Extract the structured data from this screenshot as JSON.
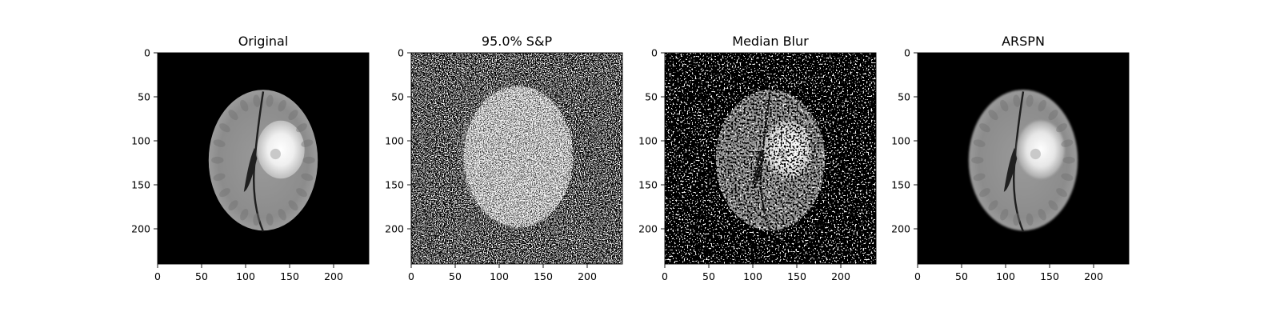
{
  "chart_data": [
    {
      "type": "image",
      "title": "Original",
      "image": {
        "name": "brain-mri-original",
        "content": "axial brain MRI slice on black background with bright lesion in right hemisphere",
        "noise": "none"
      },
      "xlim": [
        0,
        240
      ],
      "ylim": [
        0,
        240
      ],
      "y_inverted": true,
      "xticks": [
        0,
        50,
        100,
        150,
        200
      ],
      "yticks": [
        0,
        50,
        100,
        150,
        200
      ]
    },
    {
      "type": "image",
      "title": "95.0% S&P",
      "image": {
        "name": "brain-mri-salt-pepper",
        "content": "same slice corrupted with salt and pepper noise",
        "noise": "salt-and-pepper",
        "noise_density": 0.95
      },
      "xlim": [
        0,
        240
      ],
      "ylim": [
        0,
        240
      ],
      "y_inverted": true,
      "xticks": [
        0,
        50,
        100,
        150,
        200
      ],
      "yticks": [
        0,
        50,
        100,
        150,
        200
      ]
    },
    {
      "type": "image",
      "title": "Median Blur",
      "image": {
        "name": "brain-mri-median-blur",
        "content": "median filtered result with residual speckle",
        "noise": "residual"
      },
      "xlim": [
        0,
        240
      ],
      "ylim": [
        0,
        240
      ],
      "y_inverted": true,
      "xticks": [
        0,
        50,
        100,
        150,
        200
      ],
      "yticks": [
        0,
        50,
        100,
        150,
        200
      ]
    },
    {
      "type": "image",
      "title": "ARSPN",
      "image": {
        "name": "brain-mri-arspn",
        "content": "restored slice closely matching original",
        "noise": "none"
      },
      "xlim": [
        0,
        240
      ],
      "ylim": [
        0,
        240
      ],
      "y_inverted": true,
      "xticks": [
        0,
        50,
        100,
        150,
        200
      ],
      "yticks": [
        0,
        50,
        100,
        150,
        200
      ]
    }
  ],
  "colors": {
    "background": "#000000",
    "tissue": "#8a8a8a",
    "lesion": "#f2f2f2",
    "axis": "#000000"
  }
}
